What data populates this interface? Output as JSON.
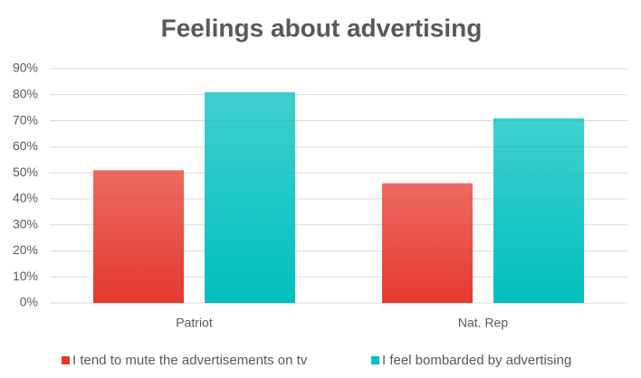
{
  "chart_data": {
    "type": "bar",
    "title": "Feelings about advertising",
    "categories": [
      "Patriot",
      "Nat. Rep"
    ],
    "series": [
      {
        "name": "I tend to mute the advertisements on tv",
        "color": "#e5392f",
        "values": [
          51,
          46
        ]
      },
      {
        "name": "I feel bombarded by advertising",
        "color": "#00c0bf",
        "values": [
          81,
          71
        ]
      }
    ],
    "ylim": [
      0,
      90
    ],
    "yticks": [
      {
        "value": 0,
        "label": "0%"
      },
      {
        "value": 10,
        "label": "10%"
      },
      {
        "value": 20,
        "label": "20%"
      },
      {
        "value": 30,
        "label": "30%"
      },
      {
        "value": 40,
        "label": "40%"
      },
      {
        "value": 50,
        "label": "50%"
      },
      {
        "value": 60,
        "label": "60%"
      },
      {
        "value": 70,
        "label": "70%"
      },
      {
        "value": 80,
        "label": "80%"
      },
      {
        "value": 90,
        "label": "90%"
      }
    ],
    "grid": true,
    "legend": "bottom"
  }
}
